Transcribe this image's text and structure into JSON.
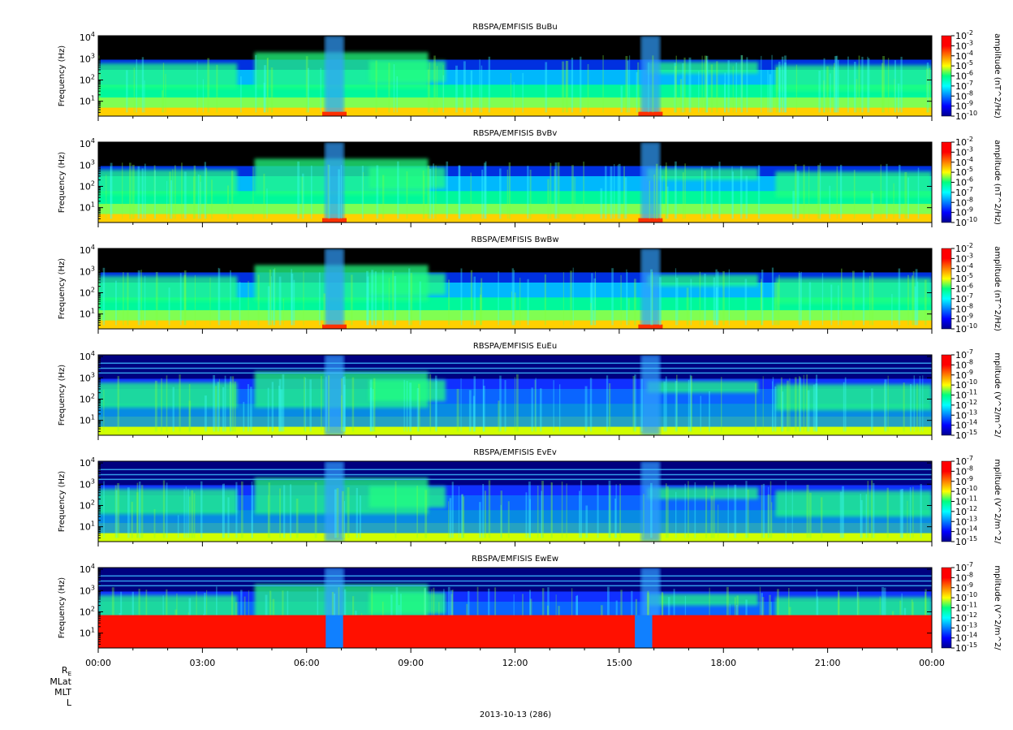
{
  "chart_data": [
    {
      "type": "heatmap",
      "title": "RBSPA/EMFISIS  BuBu",
      "ylabel": "Frequency (Hz)",
      "y_scale": "log",
      "ylim": [
        2,
        12000
      ],
      "y_ticks": [
        10,
        100,
        1000,
        10000
      ],
      "colorbar": {
        "label": "amplitude (nT^2/Hz)",
        "scale": "log",
        "exponents": [
          -2,
          -3,
          -4,
          -5,
          -6,
          -7,
          -8,
          -9,
          -10
        ],
        "range": [
          1e-10,
          0.01
        ]
      },
      "features": [
        "chorus_band_0.3k-1k",
        "hiss_band_100Hz",
        "intense_low_freq_near_07:00_16:00"
      ]
    },
    {
      "type": "heatmap",
      "title": "RBSPA/EMFISIS  BvBv",
      "ylabel": "Frequency (Hz)",
      "y_scale": "log",
      "ylim": [
        2,
        12000
      ],
      "y_ticks": [
        10,
        100,
        1000,
        10000
      ],
      "colorbar": {
        "label": "amplitude (nT^2/Hz)",
        "scale": "log",
        "exponents": [
          -2,
          -3,
          -4,
          -5,
          -6,
          -7,
          -8,
          -9,
          -10
        ],
        "range": [
          1e-10,
          0.01
        ]
      }
    },
    {
      "type": "heatmap",
      "title": "RBSPA/EMFISIS  BwBw",
      "ylabel": "Frequency (Hz)",
      "y_scale": "log",
      "ylim": [
        2,
        12000
      ],
      "y_ticks": [
        10,
        100,
        1000,
        10000
      ],
      "colorbar": {
        "label": "amplitude (nT^2/Hz)",
        "scale": "log",
        "exponents": [
          -2,
          -3,
          -4,
          -5,
          -6,
          -7,
          -8,
          -9,
          -10
        ],
        "range": [
          1e-10,
          0.01
        ]
      }
    },
    {
      "type": "heatmap",
      "title": "RBSPA/EMFISIS  EuEu",
      "ylabel": "Frequency (Hz)",
      "y_scale": "log",
      "ylim": [
        2,
        12000
      ],
      "y_ticks": [
        10,
        100,
        1000,
        10000
      ],
      "colorbar": {
        "label": "mplitude (V^2/m^2/",
        "scale": "log",
        "exponents": [
          -7,
          -8,
          -9,
          -10,
          -11,
          -12,
          -13,
          -14,
          -15
        ],
        "range": [
          1e-15,
          1e-07
        ]
      }
    },
    {
      "type": "heatmap",
      "title": "RBSPA/EMFISIS  EvEv",
      "ylabel": "Frequency (Hz)",
      "y_scale": "log",
      "ylim": [
        2,
        12000
      ],
      "y_ticks": [
        10,
        100,
        1000,
        10000
      ],
      "colorbar": {
        "label": "mplitude (V^2/m^2/",
        "scale": "log",
        "exponents": [
          -7,
          -8,
          -9,
          -10,
          -11,
          -12,
          -13,
          -14,
          -15
        ],
        "range": [
          1e-15,
          1e-07
        ]
      }
    },
    {
      "type": "heatmap",
      "title": "RBSPA/EMFISIS  EwEw",
      "ylabel": "Frequency (Hz)",
      "y_scale": "log",
      "ylim": [
        2,
        12000
      ],
      "y_ticks": [
        10,
        100,
        1000,
        10000
      ],
      "colorbar": {
        "label": "mplitude (V^2/m^2/",
        "scale": "log",
        "exponents": [
          -7,
          -8,
          -9,
          -10,
          -11,
          -12,
          -13,
          -14,
          -15
        ],
        "range": [
          1e-15,
          1e-07
        ]
      }
    }
  ],
  "x_axis": {
    "range_hours": [
      0,
      24
    ],
    "tick_labels": [
      "00:00",
      "03:00",
      "06:00",
      "09:00",
      "12:00",
      "15:00",
      "18:00",
      "21:00",
      "00:00"
    ],
    "tick_hours": [
      0,
      3,
      6,
      9,
      12,
      15,
      18,
      21,
      24
    ]
  },
  "ephemeris_labels": {
    "re": "R",
    "re_sub": "E",
    "mlat": "MLat",
    "mlt": "MLT",
    "l": "L"
  },
  "date_label": "2013-10-13 (286)"
}
